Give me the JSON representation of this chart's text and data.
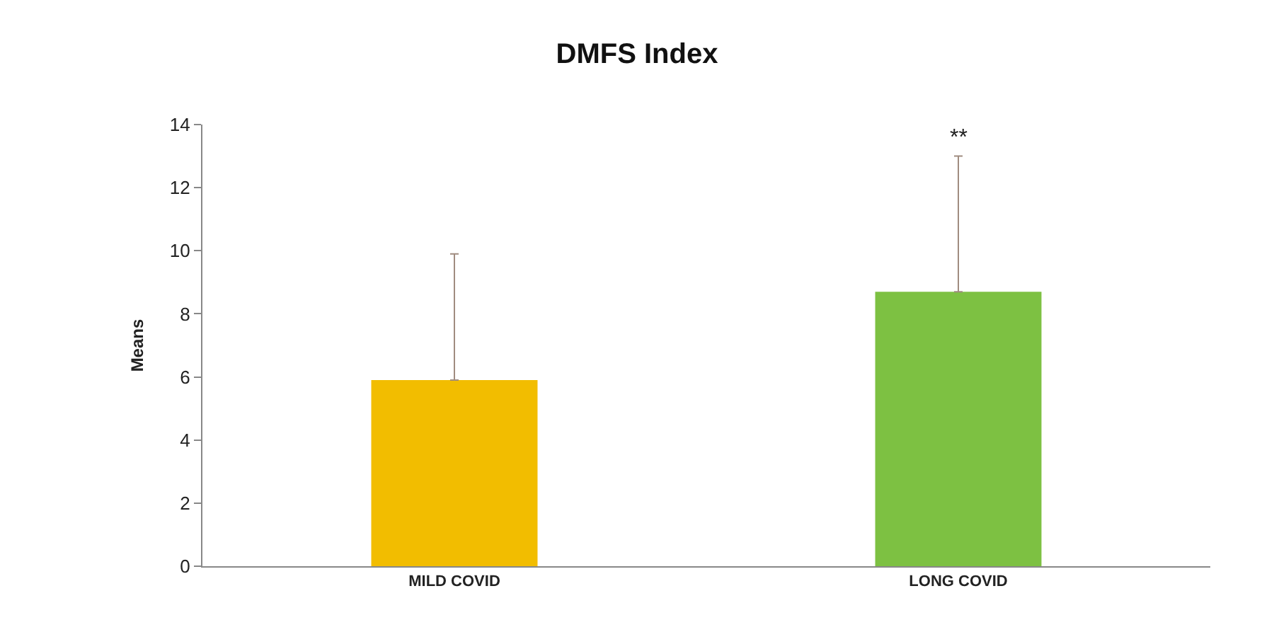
{
  "chart_data": {
    "type": "bar",
    "title": "DMFS Index",
    "ylabel": "Means",
    "categories": [
      "MILD COVID",
      "LONG COVID"
    ],
    "values": [
      5.9,
      8.7
    ],
    "colors": [
      "#f2bd00",
      "#7dc142"
    ],
    "errors": [
      [
        5.9,
        9.9
      ],
      [
        8.7,
        13.0
      ]
    ],
    "ylim": [
      0,
      14
    ],
    "yticks": [
      0,
      2,
      4,
      6,
      8,
      10,
      12,
      14
    ],
    "annotations": [
      "**"
    ]
  }
}
